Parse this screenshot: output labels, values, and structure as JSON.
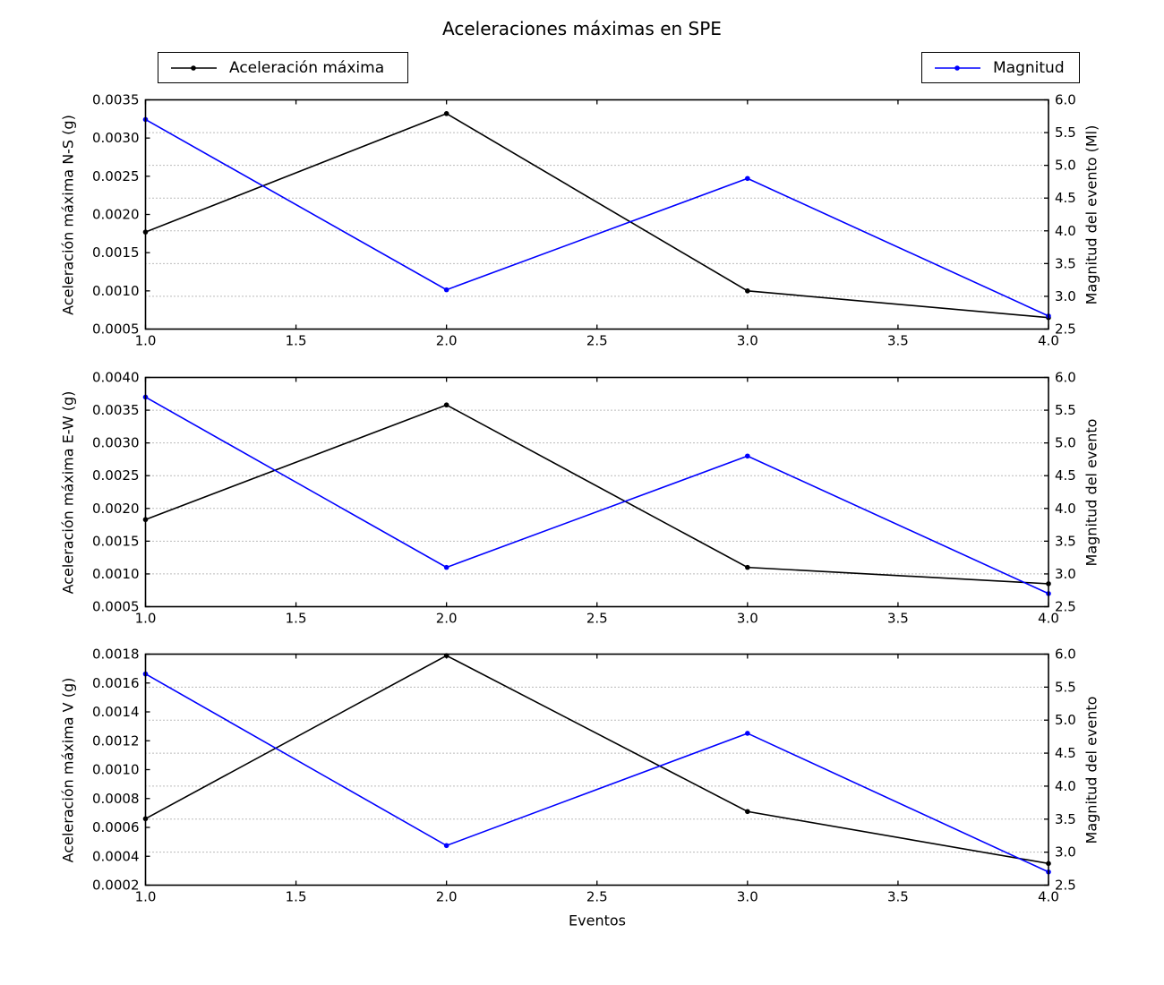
{
  "title": "Aceleraciones máximas en SPE",
  "xlabel": "Eventos",
  "legends": {
    "acceleration": {
      "label": "Aceleración máxima",
      "color": "#000000"
    },
    "magnitude": {
      "label": "Magnitud",
      "color": "#0000ff"
    }
  },
  "axis_colors": {
    "spine": "#000000",
    "grid": "#777777",
    "text": "#000000"
  },
  "chart_data": [
    {
      "type": "line",
      "x": [
        1.0,
        2.0,
        3.0,
        4.0
      ],
      "xlim": [
        1.0,
        4.0
      ],
      "xticks": [
        "1.0",
        "1.5",
        "2.0",
        "2.5",
        "3.0",
        "3.5",
        "4.0"
      ],
      "ylabel_left": "Aceleración máxima N-S (g)",
      "ylim_left": [
        0.0005,
        0.0035
      ],
      "yticks_left": [
        "0.0005",
        "0.0010",
        "0.0015",
        "0.0020",
        "0.0025",
        "0.0030",
        "0.0035"
      ],
      "ylabel_right": "Magnitud del evento (Ml)",
      "ylim_right": [
        2.5,
        6.0
      ],
      "yticks_right": [
        "2.5",
        "3.0",
        "3.5",
        "4.0",
        "4.5",
        "5.0",
        "5.5",
        "6.0"
      ],
      "grid": "horizontal dotted at right-axis ticks",
      "series": [
        {
          "name": "Aceleración máxima",
          "axis": "left",
          "color": "#000000",
          "values": [
            0.00177,
            0.00332,
            0.001,
            0.00065
          ]
        },
        {
          "name": "Magnitud",
          "axis": "right",
          "color": "#0000ff",
          "values": [
            5.7,
            3.1,
            4.8,
            2.7
          ]
        }
      ]
    },
    {
      "type": "line",
      "x": [
        1.0,
        2.0,
        3.0,
        4.0
      ],
      "xlim": [
        1.0,
        4.0
      ],
      "xticks": [
        "1.0",
        "1.5",
        "2.0",
        "2.5",
        "3.0",
        "3.5",
        "4.0"
      ],
      "ylabel_left": "Aceleración máxima E-W (g)",
      "ylim_left": [
        0.0005,
        0.004
      ],
      "yticks_left": [
        "0.0005",
        "0.0010",
        "0.0015",
        "0.0020",
        "0.0025",
        "0.0030",
        "0.0035",
        "0.0040"
      ],
      "ylabel_right": "Magnitud del evento",
      "ylim_right": [
        2.5,
        6.0
      ],
      "yticks_right": [
        "2.5",
        "3.0",
        "3.5",
        "4.0",
        "4.5",
        "5.0",
        "5.5",
        "6.0"
      ],
      "grid": "horizontal dotted at right-axis ticks",
      "series": [
        {
          "name": "Aceleración máxima",
          "axis": "left",
          "color": "#000000",
          "values": [
            0.00183,
            0.00358,
            0.0011,
            0.00085
          ]
        },
        {
          "name": "Magnitud",
          "axis": "right",
          "color": "#0000ff",
          "values": [
            5.7,
            3.1,
            4.8,
            2.7
          ]
        }
      ]
    },
    {
      "type": "line",
      "x": [
        1.0,
        2.0,
        3.0,
        4.0
      ],
      "xlim": [
        1.0,
        4.0
      ],
      "xticks": [
        "1.0",
        "1.5",
        "2.0",
        "2.5",
        "3.0",
        "3.5",
        "4.0"
      ],
      "ylabel_left": "Aceleración máxima V (g)",
      "ylim_left": [
        0.0002,
        0.0018
      ],
      "yticks_left": [
        "0.0002",
        "0.0004",
        "0.0006",
        "0.0008",
        "0.0010",
        "0.0012",
        "0.0014",
        "0.0016",
        "0.0018"
      ],
      "ylabel_right": "Magnitud del evento",
      "ylim_right": [
        2.5,
        6.0
      ],
      "yticks_right": [
        "2.5",
        "3.0",
        "3.5",
        "4.0",
        "4.5",
        "5.0",
        "5.5",
        "6.0"
      ],
      "grid": "horizontal dotted at right-axis ticks",
      "series": [
        {
          "name": "Aceleración máxima",
          "axis": "left",
          "color": "#000000",
          "values": [
            0.00066,
            0.00179,
            0.00071,
            0.00035
          ]
        },
        {
          "name": "Magnitud",
          "axis": "right",
          "color": "#0000ff",
          "values": [
            5.7,
            3.1,
            4.8,
            2.7
          ]
        }
      ]
    }
  ]
}
